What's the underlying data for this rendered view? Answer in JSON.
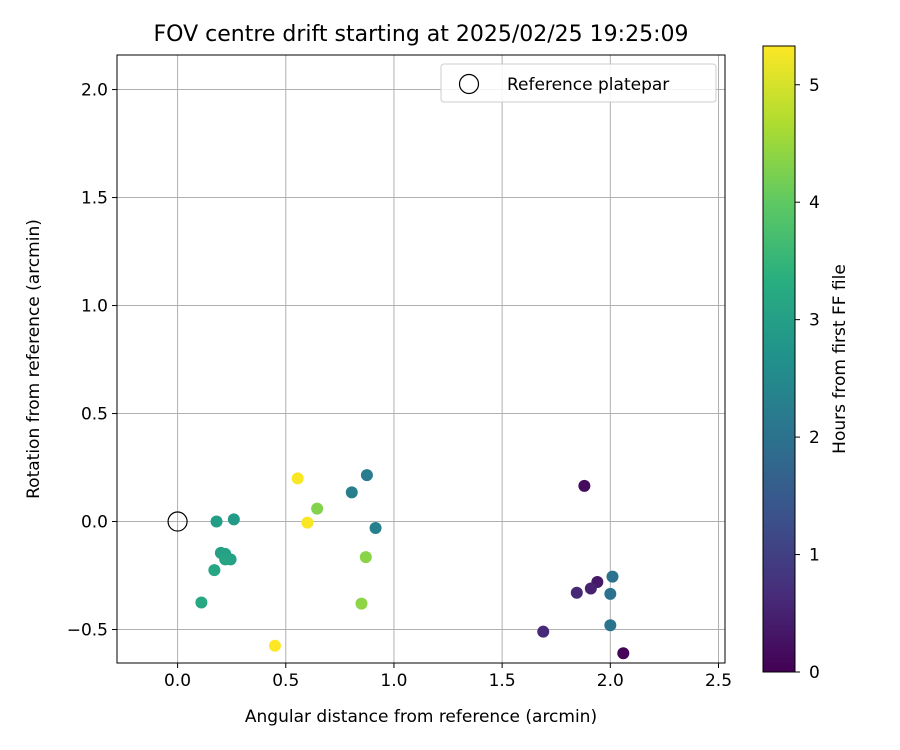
{
  "chart_data": {
    "type": "scatter",
    "title": "FOV centre drift starting at 2025/02/25 19:25:09",
    "xlabel": "Angular distance from reference (arcmin)",
    "ylabel": "Rotation from reference (arcmin)",
    "xlim": [
      -0.28,
      2.53
    ],
    "ylim": [
      -0.655,
      2.16
    ],
    "xticks": [
      0.0,
      0.5,
      1.0,
      1.5,
      2.0,
      2.5
    ],
    "xtick_labels": [
      "0.0",
      "0.5",
      "1.0",
      "1.5",
      "2.0",
      "2.5"
    ],
    "yticks": [
      -0.5,
      0.0,
      0.5,
      1.0,
      1.5,
      2.0
    ],
    "ytick_labels": [
      "−0.5",
      "0.0",
      "0.5",
      "1.0",
      "1.5",
      "2.0"
    ],
    "grid": true,
    "legend": {
      "position": "top-right",
      "entries": [
        "Reference platepar"
      ]
    },
    "reference_point": {
      "label": "Reference platepar",
      "x": 0.0,
      "y": 0.0
    },
    "colorbar": {
      "label": "Hours from first FF file",
      "colormap": "viridis",
      "range": [
        0,
        5.33
      ],
      "ticks": [
        0,
        1,
        2,
        3,
        4,
        5
      ],
      "tick_labels": [
        "0",
        "1",
        "2",
        "3",
        "4",
        "5"
      ]
    },
    "points": [
      {
        "x": 2.06,
        "y": -0.61,
        "hours": 0.05
      },
      {
        "x": 1.88,
        "y": 0.165,
        "hours": 0.15
      },
      {
        "x": 1.94,
        "y": -0.28,
        "hours": 0.35
      },
      {
        "x": 1.91,
        "y": -0.31,
        "hours": 0.5
      },
      {
        "x": 1.69,
        "y": -0.51,
        "hours": 0.6
      },
      {
        "x": 1.845,
        "y": -0.33,
        "hours": 0.6
      },
      {
        "x": 2.01,
        "y": -0.255,
        "hours": 2.0
      },
      {
        "x": 2.0,
        "y": -0.335,
        "hours": 2.0
      },
      {
        "x": 2.0,
        "y": -0.48,
        "hours": 2.05
      },
      {
        "x": 0.875,
        "y": 0.215,
        "hours": 2.2
      },
      {
        "x": 0.805,
        "y": 0.135,
        "hours": 2.25
      },
      {
        "x": 0.915,
        "y": -0.03,
        "hours": 2.3
      },
      {
        "x": 0.26,
        "y": 0.01,
        "hours": 2.9
      },
      {
        "x": 0.18,
        "y": 0.0,
        "hours": 2.95
      },
      {
        "x": 0.2,
        "y": -0.145,
        "hours": 3.0
      },
      {
        "x": 0.22,
        "y": -0.15,
        "hours": 3.05
      },
      {
        "x": 0.245,
        "y": -0.175,
        "hours": 3.05
      },
      {
        "x": 0.22,
        "y": -0.175,
        "hours": 3.1
      },
      {
        "x": 0.17,
        "y": -0.225,
        "hours": 3.15
      },
      {
        "x": 0.11,
        "y": -0.375,
        "hours": 3.2
      },
      {
        "x": 0.645,
        "y": 0.06,
        "hours": 4.3
      },
      {
        "x": 0.87,
        "y": -0.165,
        "hours": 4.35
      },
      {
        "x": 0.85,
        "y": -0.38,
        "hours": 4.4
      },
      {
        "x": 0.555,
        "y": 0.2,
        "hours": 5.3
      },
      {
        "x": 0.6,
        "y": -0.005,
        "hours": 5.3
      },
      {
        "x": 0.45,
        "y": -0.575,
        "hours": 5.33
      }
    ]
  }
}
